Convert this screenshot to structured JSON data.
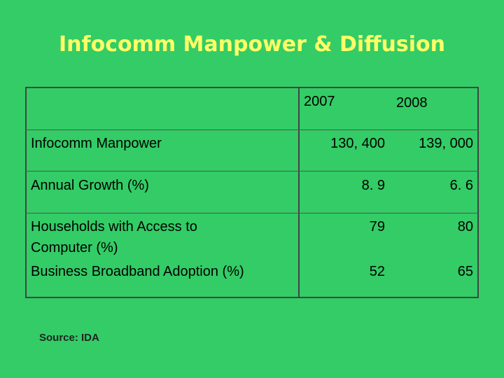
{
  "slide": {
    "title": "Infocomm Manpower & Diffusion",
    "source": "Source: IDA"
  },
  "table": {
    "headers": [
      "",
      "2007",
      "2008"
    ],
    "rows": [
      {
        "label": "Infocomm Manpower",
        "y2007": "130, 400",
        "y2008": "139, 000"
      },
      {
        "label": "Annual Growth (%)",
        "y2007": "8. 9",
        "y2008": "6. 6"
      },
      {
        "label": "Households with Access to Computer (%)",
        "y2007": "79",
        "y2008": "80"
      },
      {
        "label": "Business Broadband Adoption (%)",
        "y2007": "52",
        "y2008": "65"
      }
    ]
  }
}
